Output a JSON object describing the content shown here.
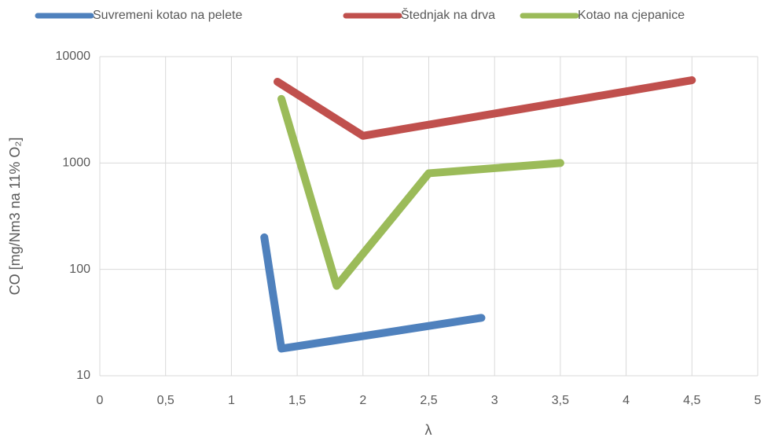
{
  "chart_data": {
    "type": "line",
    "x_label": "λ",
    "y_label": "CO [mg/Nm3 na 11% O₂]",
    "log_y": true,
    "grid": true,
    "legend": "top",
    "xlim": [
      0,
      5
    ],
    "xticks": [
      0,
      {
        "value": 0.5,
        "label": "0,5"
      },
      1,
      {
        "value": 1.5,
        "label": "1,5"
      },
      2,
      {
        "value": 2.5,
        "label": "2,5"
      },
      3,
      {
        "value": 3.5,
        "label": "3,5"
      },
      4,
      {
        "value": 4.5,
        "label": "4,5"
      },
      5
    ],
    "ylim": [
      10,
      10000
    ],
    "yticks": [
      10,
      100,
      1000,
      10000
    ],
    "series": [
      {
        "name": "Suvremeni kotao na pelete",
        "color": "#4f81bd",
        "x": [
          1.25,
          1.38,
          2.9
        ],
        "values": [
          200,
          18,
          35
        ]
      },
      {
        "name": "Štednjak na drva",
        "color": "#c0504d",
        "x": [
          1.35,
          2,
          4.5
        ],
        "values": [
          5800,
          1800,
          6000
        ]
      },
      {
        "name": "Kotao na cjepanice",
        "color": "#9bbb59",
        "x": [
          1.38,
          1.8,
          2.5,
          3.5
        ],
        "values": [
          4000,
          70,
          800,
          1000
        ]
      }
    ]
  }
}
